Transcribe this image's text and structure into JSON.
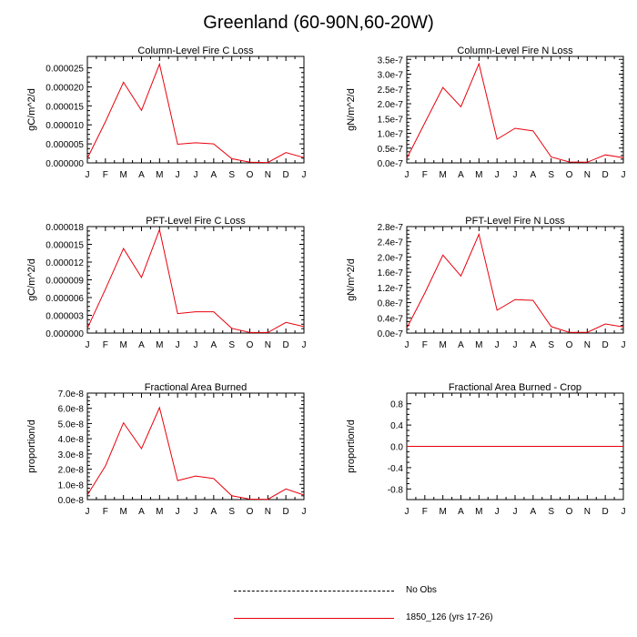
{
  "title": "Greenland (60-90N,60-20W)",
  "legend": [
    {
      "label": "No Obs",
      "style": "dashed",
      "color": "#000000"
    },
    {
      "label": "1850_126 (yrs 17-26)",
      "style": "solid",
      "color": "#e8000b"
    }
  ],
  "chart_data": [
    {
      "type": "line",
      "title": "Column-Level Fire C Loss",
      "ylabel": "gC/m^2/d",
      "x": [
        "J",
        "F",
        "M",
        "A",
        "M",
        "J",
        "J",
        "A",
        "S",
        "O",
        "N",
        "D",
        "J"
      ],
      "ylim": [
        0,
        2.8e-05
      ],
      "yticks": [
        0,
        5e-06,
        1e-05,
        1.5e-05,
        2e-05,
        2.5e-05
      ],
      "ytick_labels": [
        "0.000000",
        "0.000005",
        "0.000010",
        "0.000015",
        "0.000020",
        "0.000025"
      ],
      "series": [
        {
          "color": "#e8000b",
          "values": [
            1.2e-06,
            1.08e-05,
            2.12e-05,
            1.38e-05,
            2.6e-05,
            4.9e-06,
            5.3e-06,
            5e-06,
            1.1e-06,
            2e-07,
            1e-07,
            2.7e-06,
            1.4e-06
          ]
        }
      ]
    },
    {
      "type": "line",
      "title": "Column-Level Fire N Loss",
      "ylabel": "gN/m^2/d",
      "x": [
        "J",
        "F",
        "M",
        "A",
        "M",
        "J",
        "J",
        "A",
        "S",
        "O",
        "N",
        "D",
        "J"
      ],
      "ylim": [
        0,
        3.6e-07
      ],
      "yticks": [
        0,
        5e-08,
        1e-07,
        1.5e-07,
        2e-07,
        2.5e-07,
        3e-07,
        3.5e-07
      ],
      "ytick_labels": [
        "0.0e-7",
        "0.5e-7",
        "1.0e-7",
        "1.5e-7",
        "2.0e-7",
        "2.5e-7",
        "3.0e-7",
        "3.5e-7"
      ],
      "series": [
        {
          "color": "#e8000b",
          "values": [
            1.5e-08,
            1.35e-07,
            2.55e-07,
            1.9e-07,
            3.35e-07,
            8e-08,
            1.17e-07,
            1.08e-07,
            2e-08,
            3e-09,
            2e-09,
            2.7e-08,
            1.8e-08
          ]
        }
      ]
    },
    {
      "type": "line",
      "title": "PFT-Level Fire C Loss",
      "ylabel": "gC/m^2/d",
      "x": [
        "J",
        "F",
        "M",
        "A",
        "M",
        "J",
        "J",
        "A",
        "S",
        "O",
        "N",
        "D",
        "J"
      ],
      "ylim": [
        0,
        1.8e-05
      ],
      "yticks": [
        0,
        3e-06,
        6e-06,
        9e-06,
        1.2e-05,
        1.5e-05,
        1.8e-05
      ],
      "ytick_labels": [
        "0.000000",
        "0.000003",
        "0.000006",
        "0.000009",
        "0.000012",
        "0.000015",
        "0.000018"
      ],
      "series": [
        {
          "color": "#e8000b",
          "values": [
            8e-07,
            7.4e-06,
            1.43e-05,
            9.4e-06,
            1.75e-05,
            3.3e-06,
            3.6e-06,
            3.6e-06,
            8e-07,
            1e-07,
            1e-07,
            1.8e-06,
            1.1e-06
          ]
        }
      ]
    },
    {
      "type": "line",
      "title": "PFT-Level Fire N Loss",
      "ylabel": "gN/m^2/d",
      "x": [
        "J",
        "F",
        "M",
        "A",
        "M",
        "J",
        "J",
        "A",
        "S",
        "O",
        "N",
        "D",
        "J"
      ],
      "ylim": [
        0,
        2.8e-07
      ],
      "yticks": [
        0,
        4e-08,
        8e-08,
        1.2e-07,
        1.6e-07,
        2e-07,
        2.4e-07,
        2.8e-07
      ],
      "ytick_labels": [
        "0.0e-7",
        "0.4e-7",
        "0.8e-7",
        "1.2e-7",
        "1.6e-7",
        "2.0e-7",
        "2.4e-7",
        "2.8e-7"
      ],
      "series": [
        {
          "color": "#e8000b",
          "values": [
            1.3e-08,
            1.05e-07,
            2.05e-07,
            1.5e-07,
            2.6e-07,
            6e-08,
            8.8e-08,
            8.6e-08,
            1.7e-08,
            2e-09,
            2e-09,
            2.4e-08,
            1.6e-08
          ]
        }
      ]
    },
    {
      "type": "line",
      "title": "Fractional Area Burned",
      "ylabel": "proportion/d",
      "x": [
        "J",
        "F",
        "M",
        "A",
        "M",
        "J",
        "J",
        "A",
        "S",
        "O",
        "N",
        "D",
        "J"
      ],
      "ylim": [
        0,
        7e-08
      ],
      "yticks": [
        0,
        1e-08,
        2e-08,
        3e-08,
        4e-08,
        5e-08,
        6e-08,
        7e-08
      ],
      "ytick_labels": [
        "0.0e-8",
        "1.0e-8",
        "2.0e-8",
        "3.0e-8",
        "4.0e-8",
        "5.0e-8",
        "6.0e-8",
        "7.0e-8"
      ],
      "series": [
        {
          "color": "#e8000b",
          "values": [
            3e-09,
            2.2e-08,
            5.05e-08,
            3.35e-08,
            6.05e-08,
            1.25e-08,
            1.55e-08,
            1.38e-08,
            2.5e-09,
            3e-10,
            2e-10,
            7e-09,
            3e-09
          ]
        }
      ]
    },
    {
      "type": "line",
      "title": "Fractional Area Burned - Crop",
      "ylabel": "proportion/d",
      "x": [
        "J",
        "F",
        "M",
        "A",
        "M",
        "J",
        "J",
        "A",
        "S",
        "O",
        "N",
        "D",
        "J"
      ],
      "ylim": [
        -1.0,
        1.0
      ],
      "yticks": [
        -0.8,
        -0.4,
        0,
        0.4,
        0.8
      ],
      "ytick_labels": [
        "-0.8",
        "-0.4",
        "0.0",
        "0.4",
        "0.8"
      ],
      "series": [
        {
          "color": "#e8000b",
          "values": [
            0,
            0,
            0,
            0,
            0,
            0,
            0,
            0,
            0,
            0,
            0,
            0,
            0
          ]
        }
      ]
    }
  ]
}
